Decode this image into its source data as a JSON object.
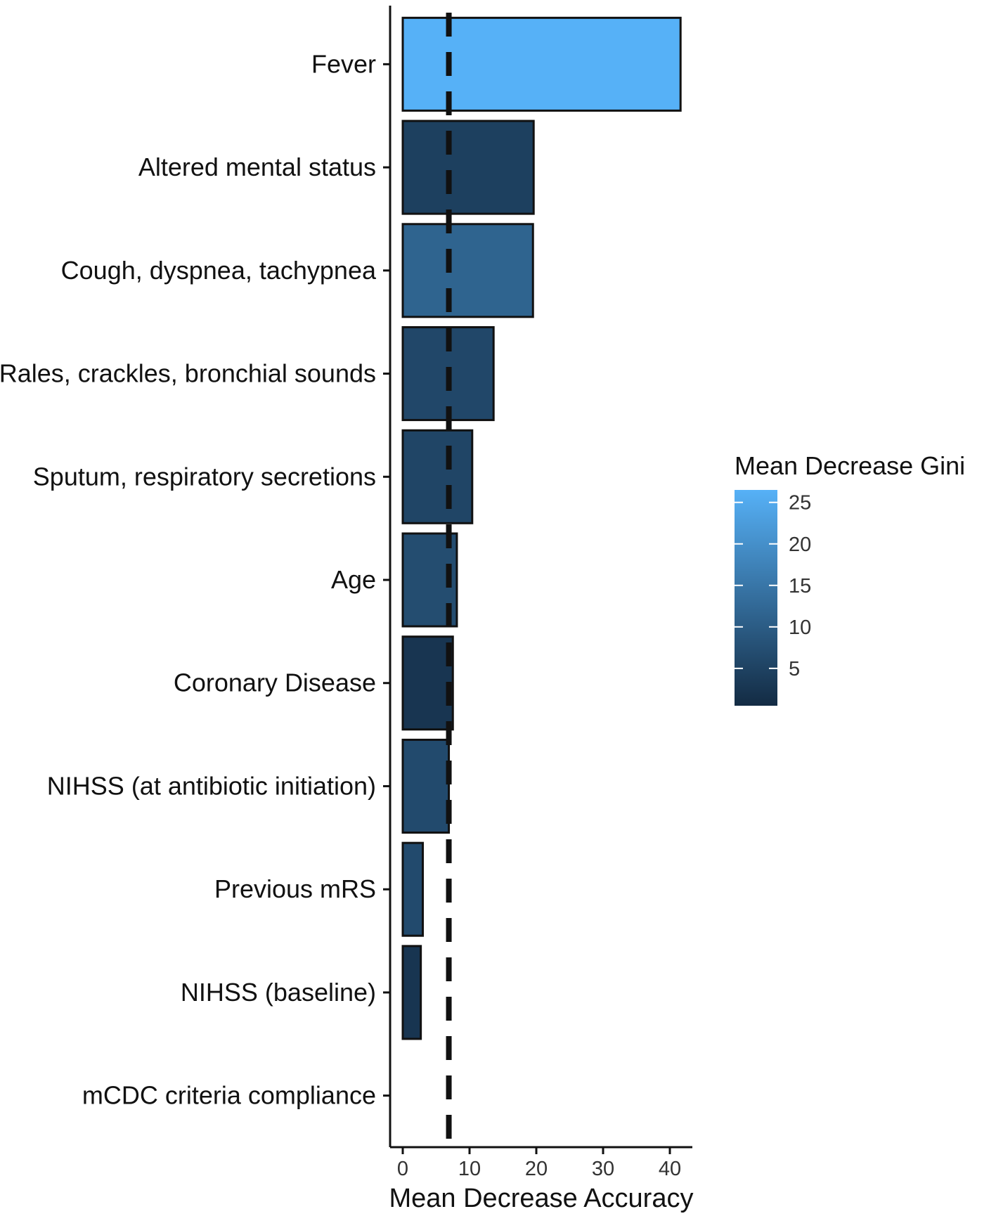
{
  "chart_data": {
    "type": "bar",
    "orientation": "horizontal",
    "title": "",
    "xlabel": "Mean Decrease Accuracy",
    "ylabel": "",
    "xlim": [
      -2,
      44
    ],
    "x_ticks": [
      0,
      10,
      20,
      30,
      40
    ],
    "x_tick_labels": [
      "0",
      "10",
      "20",
      "30",
      "40"
    ],
    "categories": [
      "Fever",
      "Altered mental status",
      "Cough, dyspnea, tachypnea",
      "Rales, crackles, bronchial sounds",
      "Sputum, respiratory secretions",
      "Age",
      "Coronary Disease",
      "NIHSS (at antibiotic initiation)",
      "Previous mRS",
      "NIHSS (baseline)",
      "mCDC criteria compliance"
    ],
    "values": [
      41.6,
      19.6,
      19.5,
      13.6,
      10.4,
      8.1,
      7.5,
      6.9,
      3.0,
      2.7,
      0.0
    ],
    "color_values": [
      26.5,
      4.5,
      11.5,
      6.0,
      5.5,
      7.0,
      2.5,
      6.5,
      6.5,
      2.5,
      0.5
    ],
    "reference_line": {
      "value": 6.9,
      "style": "dashed"
    },
    "legend": {
      "title": "Mean Decrease Gini",
      "ticks": [
        5,
        10,
        15,
        20,
        25
      ],
      "tick_labels": [
        "5",
        "10",
        "15",
        "20",
        "25"
      ],
      "range": [
        0.5,
        26.5
      ],
      "color_low": "#132b43",
      "color_high": "#56b1f7",
      "position": "right"
    },
    "grid": false
  }
}
